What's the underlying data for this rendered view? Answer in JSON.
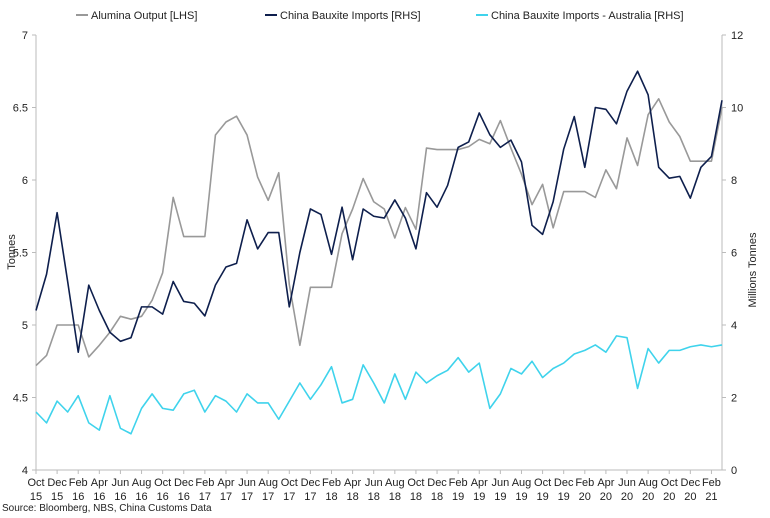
{
  "chart_data": {
    "type": "line",
    "title": "",
    "source": "Source: Bloomberg, NBS, China Customs Data",
    "legend_position": "top",
    "grid": false,
    "left_axis": {
      "label": "Tonnes",
      "ylim": [
        4,
        7
      ],
      "ticks": [
        "4",
        "4.5",
        "5",
        "5.5",
        "6",
        "6.5",
        "7"
      ]
    },
    "right_axis": {
      "label": "Millions Tonnes",
      "ylim": [
        0,
        12
      ],
      "ticks": [
        "0",
        "2",
        "4",
        "6",
        "8",
        "10",
        "12"
      ]
    },
    "x_tick_labels": [
      [
        "Oct",
        "15"
      ],
      [
        "Dec",
        "15"
      ],
      [
        "Feb",
        "16"
      ],
      [
        "Apr",
        "16"
      ],
      [
        "Jun",
        "16"
      ],
      [
        "Aug",
        "16"
      ],
      [
        "Oct",
        "16"
      ],
      [
        "Dec",
        "16"
      ],
      [
        "Feb",
        "17"
      ],
      [
        "Apr",
        "17"
      ],
      [
        "Jun",
        "17"
      ],
      [
        "Aug",
        "17"
      ],
      [
        "Oct",
        "17"
      ],
      [
        "Dec",
        "17"
      ],
      [
        "Feb",
        "18"
      ],
      [
        "Apr",
        "18"
      ],
      [
        "Jun",
        "18"
      ],
      [
        "Aug",
        "18"
      ],
      [
        "Oct",
        "18"
      ],
      [
        "Dec",
        "18"
      ],
      [
        "Feb",
        "19"
      ],
      [
        "Apr",
        "19"
      ],
      [
        "Jun",
        "19"
      ],
      [
        "Aug",
        "19"
      ],
      [
        "Oct",
        "19"
      ],
      [
        "Dec",
        "19"
      ],
      [
        "Feb",
        "20"
      ],
      [
        "Apr",
        "20"
      ],
      [
        "Jun",
        "20"
      ],
      [
        "Aug",
        "20"
      ],
      [
        "Oct",
        "20"
      ],
      [
        "Dec",
        "20"
      ],
      [
        "Feb",
        "21"
      ]
    ],
    "x": [
      "2015-10",
      "2015-11",
      "2015-12",
      "2016-01",
      "2016-02",
      "2016-03",
      "2016-04",
      "2016-05",
      "2016-06",
      "2016-07",
      "2016-08",
      "2016-09",
      "2016-10",
      "2016-11",
      "2016-12",
      "2017-01",
      "2017-02",
      "2017-03",
      "2017-04",
      "2017-05",
      "2017-06",
      "2017-07",
      "2017-08",
      "2017-09",
      "2017-10",
      "2017-11",
      "2017-12",
      "2018-01",
      "2018-02",
      "2018-03",
      "2018-04",
      "2018-05",
      "2018-06",
      "2018-07",
      "2018-08",
      "2018-09",
      "2018-10",
      "2018-11",
      "2018-12",
      "2019-01",
      "2019-02",
      "2019-03",
      "2019-04",
      "2019-05",
      "2019-06",
      "2019-07",
      "2019-08",
      "2019-09",
      "2019-10",
      "2019-11",
      "2019-12",
      "2020-01",
      "2020-02",
      "2020-03",
      "2020-04",
      "2020-05",
      "2020-06",
      "2020-07",
      "2020-08",
      "2020-09",
      "2020-10",
      "2020-11",
      "2020-12",
      "2021-01",
      "2021-02",
      "2021-03"
    ],
    "series": [
      {
        "name": "Alumina Output [LHS]",
        "axis": "left",
        "color": "#999999",
        "values": [
          4.72,
          4.79,
          5.0,
          5.0,
          5.0,
          4.78,
          4.86,
          4.95,
          5.06,
          5.04,
          5.06,
          5.17,
          5.36,
          5.88,
          5.61,
          5.61,
          5.61,
          6.31,
          6.4,
          6.44,
          6.31,
          6.02,
          5.86,
          6.05,
          5.28,
          4.86,
          5.26,
          5.26,
          5.26,
          5.63,
          5.8,
          6.01,
          5.85,
          5.8,
          5.6,
          5.81,
          5.66,
          6.22,
          6.21,
          6.21,
          6.21,
          6.23,
          6.28,
          6.25,
          6.41,
          6.22,
          6.04,
          5.83,
          5.97,
          5.67,
          5.92,
          5.92,
          5.92,
          5.88,
          6.07,
          5.94,
          6.29,
          6.1,
          6.45,
          6.56,
          6.4,
          6.3,
          6.13,
          6.13,
          6.13,
          6.5
        ]
      },
      {
        "name": "China Bauxite Imports [RHS]",
        "axis": "right",
        "color": "#0e1f4d",
        "values": [
          4.4,
          5.4,
          7.1,
          5.2,
          3.25,
          5.1,
          4.4,
          3.8,
          3.55,
          3.65,
          4.5,
          4.5,
          4.3,
          5.2,
          4.65,
          4.6,
          4.25,
          5.1,
          5.6,
          5.7,
          6.9,
          6.1,
          6.55,
          6.55,
          4.5,
          6.0,
          7.2,
          7.05,
          5.95,
          7.25,
          5.8,
          7.2,
          7.0,
          6.95,
          7.45,
          6.95,
          6.1,
          7.65,
          7.25,
          7.85,
          8.9,
          9.05,
          9.85,
          9.25,
          8.9,
          9.1,
          8.5,
          6.75,
          6.5,
          7.4,
          8.85,
          9.75,
          8.35,
          10.0,
          9.95,
          9.55,
          10.45,
          11.0,
          10.35,
          8.35,
          8.05,
          8.1,
          7.5,
          8.35,
          8.65,
          10.2
        ]
      },
      {
        "name": "China Bauxite Imports - Australia [RHS]",
        "axis": "right",
        "color": "#3fd3ec",
        "values": [
          1.6,
          1.3,
          1.9,
          1.6,
          2.05,
          1.3,
          1.1,
          2.05,
          1.15,
          1.0,
          1.7,
          2.1,
          1.7,
          1.65,
          2.1,
          2.2,
          1.6,
          2.05,
          1.9,
          1.6,
          2.1,
          1.85,
          1.85,
          1.4,
          1.9,
          2.4,
          1.95,
          2.35,
          2.85,
          1.85,
          1.95,
          2.9,
          2.4,
          1.85,
          2.65,
          1.95,
          2.7,
          2.4,
          2.6,
          2.75,
          3.1,
          2.7,
          2.95,
          1.7,
          2.1,
          2.8,
          2.65,
          3.0,
          2.55,
          2.8,
          2.95,
          3.2,
          3.3,
          3.45,
          3.25,
          3.7,
          3.65,
          2.25,
          3.35,
          2.95,
          3.3,
          3.3,
          3.4,
          3.45,
          3.4,
          3.45
        ]
      }
    ]
  }
}
